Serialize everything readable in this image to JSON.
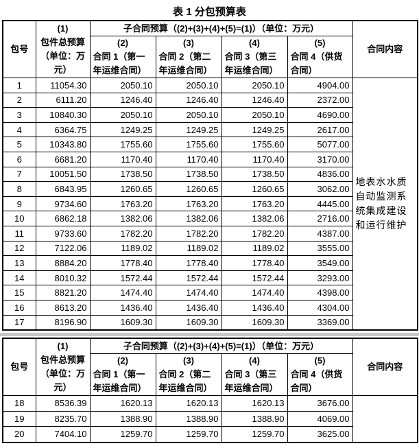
{
  "title": "表 1 分包预算表",
  "header": {
    "package_no": "包号",
    "total_no": "(1)",
    "total_label": "包件总预算（单位：万元）",
    "sub_group": "子合同预算（(2)+(3)+(4)+(5)=(1)）（单位：万元）",
    "sub_cols": [
      {
        "no": "(2)",
        "label": "合同 1（第一年运维合同）"
      },
      {
        "no": "(3)",
        "label": "合同 2（第二年运维合同）"
      },
      {
        "no": "(4)",
        "label": "合同 3（第三年运维合同）"
      },
      {
        "no": "(5)",
        "label": "合同 4（供货合同）"
      }
    ],
    "content": "合同内容"
  },
  "content_text": "地表水水质自动监测系统集成建设和运行维护",
  "rows": [
    [
      "1",
      "11054.30",
      "2050.10",
      "2050.10",
      "2050.10",
      "4904.00"
    ],
    [
      "2",
      "6111.20",
      "1246.40",
      "1246.40",
      "1246.40",
      "2372.00"
    ],
    [
      "3",
      "10840.30",
      "2050.10",
      "2050.10",
      "2050.10",
      "4690.00"
    ],
    [
      "4",
      "6364.75",
      "1249.25",
      "1249.25",
      "1249.25",
      "2617.00"
    ],
    [
      "5",
      "10343.80",
      "1755.60",
      "1755.60",
      "1755.60",
      "5077.00"
    ],
    [
      "6",
      "6681.20",
      "1170.40",
      "1170.40",
      "1170.40",
      "3170.00"
    ],
    [
      "7",
      "10051.50",
      "1738.50",
      "1738.50",
      "1738.50",
      "4836.00"
    ],
    [
      "8",
      "6843.95",
      "1260.65",
      "1260.65",
      "1260.65",
      "3062.00"
    ],
    [
      "9",
      "9734.60",
      "1763.20",
      "1763.20",
      "1763.20",
      "4445.00"
    ],
    [
      "10",
      "6862.18",
      "1382.06",
      "1382.06",
      "1382.06",
      "2716.00"
    ],
    [
      "11",
      "9733.60",
      "1782.20",
      "1782.20",
      "1782.20",
      "4387.00"
    ],
    [
      "12",
      "7122.06",
      "1189.02",
      "1189.02",
      "1189.02",
      "3555.00"
    ],
    [
      "13",
      "8884.20",
      "1778.40",
      "1778.40",
      "1778.40",
      "3549.00"
    ],
    [
      "14",
      "8010.32",
      "1572.44",
      "1572.44",
      "1572.44",
      "3293.00"
    ],
    [
      "15",
      "8821.20",
      "1474.40",
      "1474.40",
      "1474.40",
      "4398.00"
    ],
    [
      "16",
      "8613.20",
      "1436.40",
      "1436.40",
      "1436.40",
      "4304.00"
    ],
    [
      "17",
      "8196.90",
      "1609.30",
      "1609.30",
      "1609.30",
      "3369.00"
    ]
  ],
  "rows2": [
    [
      "18",
      "8536.39",
      "1620.13",
      "1620.13",
      "1620.13",
      "3676.00"
    ],
    [
      "19",
      "8235.70",
      "1388.90",
      "1388.90",
      "1388.90",
      "4069.00"
    ],
    [
      "20",
      "7404.10",
      "1259.70",
      "1259.70",
      "1259.70",
      "3625.00"
    ]
  ]
}
